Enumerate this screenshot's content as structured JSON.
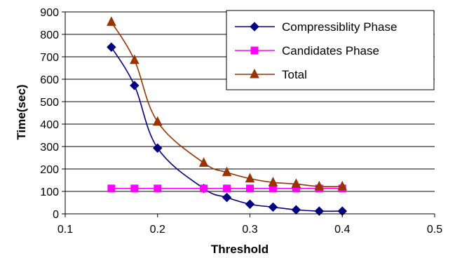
{
  "chart_data": {
    "type": "line",
    "title": "",
    "xlabel": "Threshold",
    "ylabel": "Time(sec)",
    "xlim": [
      0.1,
      0.5
    ],
    "ylim": [
      0,
      900
    ],
    "x_ticks": [
      0.1,
      0.2,
      0.3,
      0.4,
      0.5
    ],
    "x_tick_labels": [
      "0.1",
      "0.2",
      "0.3",
      "0.4",
      "0.5"
    ],
    "y_ticks": [
      0,
      100,
      200,
      300,
      400,
      500,
      600,
      700,
      800,
      900
    ],
    "y_tick_labels": [
      "0",
      "100",
      "200",
      "300",
      "400",
      "500",
      "600",
      "700",
      "800",
      "900"
    ],
    "grid": "horizontal",
    "legend_position": "top-right",
    "series": [
      {
        "name": "Compressiblity Phase",
        "color": "#000080",
        "marker": "diamond",
        "x": [
          0.15,
          0.175,
          0.2,
          0.25,
          0.275,
          0.3,
          0.325,
          0.35,
          0.375,
          0.4
        ],
        "values": [
          743,
          572,
          293,
          113,
          73,
          43,
          30,
          18,
          12,
          12
        ]
      },
      {
        "name": "Candidates Phase",
        "color": "#ff00ff",
        "marker": "square",
        "x": [
          0.15,
          0.175,
          0.2,
          0.25,
          0.275,
          0.3,
          0.325,
          0.35,
          0.375,
          0.4
        ],
        "values": [
          113,
          113,
          113,
          113,
          113,
          113,
          113,
          113,
          113,
          113
        ]
      },
      {
        "name": "Total",
        "color": "#993300",
        "marker": "triangle",
        "x": [
          0.15,
          0.175,
          0.2,
          0.25,
          0.275,
          0.3,
          0.325,
          0.35,
          0.375,
          0.4
        ],
        "values": [
          855,
          685,
          410,
          227,
          185,
          157,
          140,
          133,
          122,
          122
        ]
      }
    ]
  }
}
